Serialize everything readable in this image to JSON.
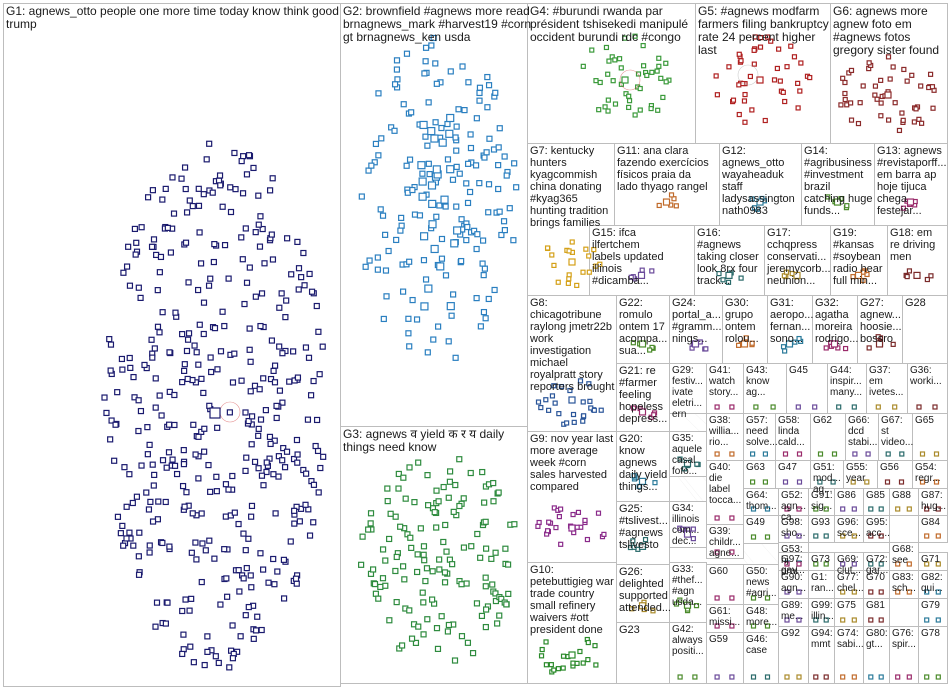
{
  "groups": [
    {
      "id": "G1",
      "lines": [
        "G1: agnews_otto people one more time today know think good",
        "trump"
      ]
    },
    {
      "id": "G2",
      "lines": [
        "G2: brownfield #agnews more read",
        "brnagnews_mark #harvest19 #corn",
        "gt brnagnews_ken usda"
      ]
    },
    {
      "id": "G3",
      "lines": [
        "G3: agnews व yield क र य daily",
        "things need know"
      ]
    },
    {
      "id": "G4",
      "lines": [
        "G4: #burundi rwanda par",
        "président tshisekedi manipulé",
        "occident burundi rdc #congo"
      ]
    },
    {
      "id": "G5",
      "lines": [
        "G5: #agnews modfarm",
        "farmers filing bankruptcy",
        "rate 24 percent higher",
        "last"
      ]
    },
    {
      "id": "G6",
      "lines": [
        "G6: agnews more",
        "agnew foto em",
        "#agnews fotos",
        "gregory sister found"
      ]
    },
    {
      "id": "G7",
      "lines": [
        "G7: kentucky",
        "hunters",
        "kyagcommish",
        "china donating",
        "#kyag365",
        "hunting tradition",
        "brings families"
      ]
    },
    {
      "id": "G8",
      "lines": [
        "G8:",
        "chicagotribune",
        "raylong jmetr22b",
        "work",
        "investigation",
        "michael",
        "royalpratt story",
        "reporters brought"
      ]
    },
    {
      "id": "G9",
      "lines": [
        "G9: nov year last",
        "more average",
        "week #corn",
        "sales harvested",
        "compared"
      ]
    },
    {
      "id": "G10",
      "lines": [
        "G10:",
        "petebuttigieg war",
        "trade country",
        "small refinery",
        "waivers #ott",
        "president done"
      ]
    },
    {
      "id": "G11",
      "lines": [
        "G11: ana clara",
        "fazendo exercícios",
        "físicos praia da",
        "lado thyago rangel"
      ]
    },
    {
      "id": "G12",
      "lines": [
        "G12:",
        "agnews_otto",
        "wayaheaduk",
        "staff",
        "ladysassington",
        "nath0983"
      ]
    },
    {
      "id": "G13",
      "lines": [
        "G13: agnews",
        "#revistaporff...",
        "em barra ap",
        "hoje tijuca",
        "chega",
        "festejar..."
      ]
    },
    {
      "id": "G14",
      "lines": [
        "G14:",
        "#agribusiness",
        "#investment",
        "brazil",
        "catching huge",
        "funds..."
      ]
    },
    {
      "id": "G15",
      "lines": [
        "G15: ifca",
        "ilfertchem",
        "labels updated",
        "illinois",
        "#dicamba..."
      ]
    },
    {
      "id": "G16",
      "lines": [
        "G16:",
        "#agnews",
        "taking closer",
        "look 8rx four",
        "track..."
      ]
    },
    {
      "id": "G17",
      "lines": [
        "G17:",
        "cchqpress",
        "conservati...",
        "jeremycorb...",
        "neunion..."
      ]
    },
    {
      "id": "G18",
      "lines": [
        "G18: em",
        "re driving",
        "men"
      ]
    },
    {
      "id": "G19",
      "lines": [
        "G19:",
        "#kansas",
        "#soybean",
        "radio hear",
        "full min..."
      ]
    },
    {
      "id": "G20",
      "lines": [
        "G20:",
        "know",
        "agnews",
        "daily yield",
        "things..."
      ]
    },
    {
      "id": "G21",
      "lines": [
        "G21: re",
        "#farmer",
        "feeling",
        "hopeless",
        "depress..."
      ]
    },
    {
      "id": "G22",
      "lines": [
        "G22:",
        "romulo",
        "ontem 17",
        "acompa...",
        "sua..."
      ]
    },
    {
      "id": "G23",
      "lines": [
        "G23"
      ]
    },
    {
      "id": "G24",
      "lines": [
        "G24:",
        "portal_a...",
        "#gramm...",
        "nings..."
      ]
    },
    {
      "id": "G25",
      "lines": [
        "G25:",
        "#tslivest...",
        "#agnews",
        "tslivesto"
      ]
    },
    {
      "id": "G26",
      "lines": [
        "G26:",
        "delighted",
        "supported",
        "attended..."
      ]
    },
    {
      "id": "G27",
      "lines": [
        "G27:",
        "agnew...",
        "hoosie...",
        "bossro"
      ]
    },
    {
      "id": "G28",
      "lines": [
        "G28"
      ]
    },
    {
      "id": "G29",
      "lines": [
        "G29:",
        "festiv...",
        "ivate",
        "eletri...",
        "ern"
      ]
    },
    {
      "id": "G30",
      "lines": [
        "G30:",
        "grupo",
        "ontem",
        "rolou..."
      ]
    },
    {
      "id": "G31",
      "lines": [
        "G31:",
        "aeropo...",
        "fernan...",
        "sono..."
      ]
    },
    {
      "id": "G32",
      "lines": [
        "G32:",
        "agatha",
        "moreira",
        "rodrigo..."
      ]
    },
    {
      "id": "G33",
      "lines": [
        "G33:",
        "#thef...",
        "#agn",
        "usda..."
      ]
    },
    {
      "id": "G34",
      "lines": [
        "G34:",
        "illinois",
        "com...",
        "dec..."
      ]
    },
    {
      "id": "G35",
      "lines": [
        "G35:",
        "aquele",
        "casal",
        "fofo..."
      ]
    },
    {
      "id": "G36",
      "lines": [
        "G36:",
        "worki..."
      ]
    },
    {
      "id": "G37",
      "lines": [
        "G37:",
        "em",
        "ivetes..."
      ]
    },
    {
      "id": "G38",
      "lines": [
        "G38:",
        "willia...",
        "rio..."
      ]
    },
    {
      "id": "G39",
      "lines": [
        "G39:",
        "childr...",
        "agne..."
      ]
    },
    {
      "id": "G40",
      "lines": [
        "G40:",
        "die",
        "label",
        "tocca..."
      ]
    },
    {
      "id": "G41",
      "lines": [
        "G41:",
        "watch",
        "story..."
      ]
    },
    {
      "id": "G42",
      "lines": [
        "G42:",
        "always",
        "positi..."
      ]
    },
    {
      "id": "G43",
      "lines": [
        "G43:",
        "know",
        "ag..."
      ]
    },
    {
      "id": "G44",
      "lines": [
        "G44:",
        "inspir...",
        "many..."
      ]
    },
    {
      "id": "G45",
      "lines": [
        "G45"
      ]
    },
    {
      "id": "G46",
      "lines": [
        "G46:",
        "case"
      ]
    },
    {
      "id": "G47",
      "lines": [
        "G47"
      ]
    },
    {
      "id": "G48",
      "lines": [
        "G48:",
        "more..."
      ]
    },
    {
      "id": "G49",
      "lines": [
        "G49"
      ]
    },
    {
      "id": "G50",
      "lines": [
        "G50:",
        "news",
        "#agri..."
      ]
    },
    {
      "id": "G51",
      "lines": [
        "G51:",
        "mod...",
        "ag..."
      ]
    },
    {
      "id": "G52",
      "lines": [
        "G52:",
        "agn...",
        "ca..."
      ]
    },
    {
      "id": "G53",
      "lines": [
        "G53:",
        "hj",
        "prai"
      ]
    },
    {
      "id": "G54",
      "lines": [
        "G54:",
        "regr..."
      ]
    },
    {
      "id": "G55",
      "lines": [
        "G55:",
        "year"
      ]
    },
    {
      "id": "G56",
      "lines": [
        "G56"
      ]
    },
    {
      "id": "G57",
      "lines": [
        "G57:",
        "need",
        "solve..."
      ]
    },
    {
      "id": "G58",
      "lines": [
        "G58:",
        "linda",
        "cald..."
      ]
    },
    {
      "id": "G59",
      "lines": [
        "G59"
      ]
    },
    {
      "id": "G60",
      "lines": [
        "G60"
      ]
    },
    {
      "id": "G61",
      "lines": [
        "G61:",
        "missi..."
      ]
    },
    {
      "id": "G62",
      "lines": [
        "G62"
      ]
    },
    {
      "id": "G63",
      "lines": [
        "G63"
      ]
    },
    {
      "id": "G64",
      "lines": [
        "G64:",
        "thom..."
      ]
    },
    {
      "id": "G65",
      "lines": [
        "G65"
      ]
    },
    {
      "id": "G66",
      "lines": [
        "G66:",
        "dcd",
        "stabi..."
      ]
    },
    {
      "id": "G67",
      "lines": [
        "G67:",
        "st",
        "video..."
      ]
    },
    {
      "id": "G68",
      "lines": [
        "G68:",
        "see"
      ]
    },
    {
      "id": "G69",
      "lines": [
        "G69:",
        "clut..."
      ]
    },
    {
      "id": "G70",
      "lines": [
        "G70"
      ]
    },
    {
      "id": "G71",
      "lines": [
        "G71"
      ]
    },
    {
      "id": "G72",
      "lines": [
        "G72:",
        "gar..."
      ]
    },
    {
      "id": "G73",
      "lines": [
        "G73"
      ]
    },
    {
      "id": "G74",
      "lines": [
        "G74:",
        "sabi..."
      ]
    },
    {
      "id": "G75",
      "lines": [
        "G75"
      ]
    },
    {
      "id": "G76",
      "lines": [
        "G76:",
        "spir..."
      ]
    },
    {
      "id": "G77",
      "lines": [
        "G77:",
        "chel..."
      ]
    },
    {
      "id": "G78",
      "lines": [
        "G78"
      ]
    },
    {
      "id": "G79",
      "lines": [
        "G79"
      ]
    },
    {
      "id": "G80",
      "lines": [
        "G80:",
        "gt..."
      ]
    },
    {
      "id": "G81",
      "lines": [
        "G81"
      ]
    },
    {
      "id": "G82",
      "lines": [
        "G82:",
        "qui..."
      ]
    },
    {
      "id": "G83",
      "lines": [
        "G83:",
        "sch..."
      ]
    },
    {
      "id": "G84",
      "lines": [
        "G84"
      ]
    },
    {
      "id": "G85",
      "lines": [
        "G85"
      ]
    },
    {
      "id": "G86",
      "lines": [
        "G86"
      ]
    },
    {
      "id": "G87",
      "lines": [
        "G87:",
        "hug..."
      ]
    },
    {
      "id": "G88",
      "lines": [
        "G88"
      ]
    },
    {
      "id": "G89",
      "lines": [
        "G89:",
        "me..."
      ]
    },
    {
      "id": "G90",
      "lines": [
        "G90:",
        "agn..."
      ]
    },
    {
      "id": "G91",
      "lines": [
        "G91:",
        "sig..."
      ]
    },
    {
      "id": "G92",
      "lines": [
        "G92"
      ]
    },
    {
      "id": "G93",
      "lines": [
        "G93"
      ]
    },
    {
      "id": "G94",
      "lines": [
        "G94:",
        "mmt"
      ]
    },
    {
      "id": "G95",
      "lines": [
        "G95:",
        "acc..."
      ]
    },
    {
      "id": "G96",
      "lines": [
        "G96:",
        "sce..."
      ]
    },
    {
      "id": "G97",
      "lines": [
        "G97:",
        "gav..."
      ]
    },
    {
      "id": "G98",
      "lines": [
        "G98:",
        "sho..."
      ]
    },
    {
      "id": "G99",
      "lines": [
        "G99:",
        "illin..."
      ]
    },
    {
      "id": "G1r",
      "lines": [
        "G1:",
        "ran..."
      ]
    }
  ],
  "colors": {
    "G1": "#1a1a6e",
    "G2": "#2a7fc0",
    "G3": "#2e8b3e",
    "G4": "#3a9a3a",
    "G5": "#b02020",
    "G6": "#8b2a2a",
    "G7": "#d4a017",
    "G8": "#2a5599",
    "G9": "#8a2a8a",
    "G10": "#2a8a2a",
    "edge": "#9a9a9a",
    "edge_red": "#cc2222",
    "border": "#bdbdbd"
  }
}
